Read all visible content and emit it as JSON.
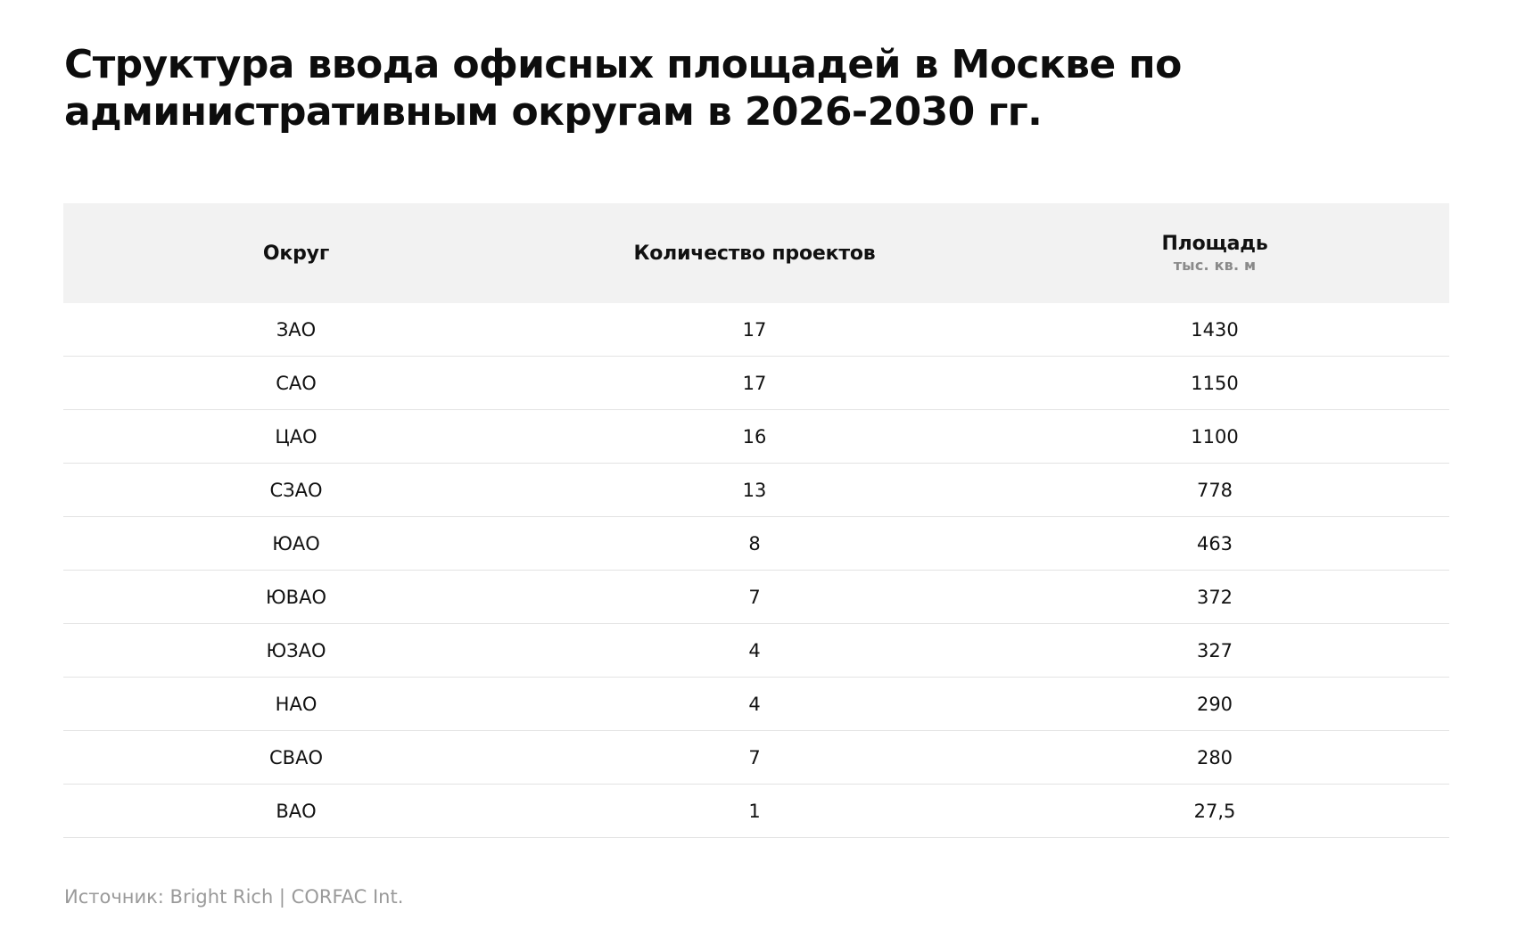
{
  "title": "Структура ввода офисных площадей в Москве по административным округам в 2026-2030 гг.",
  "source": "Источник: Bright Rich | CORFAC Int.",
  "colors": {
    "header_bg": "#f2f2f2",
    "divider": "#e3e3e3",
    "source_text": "#9a9a9a"
  },
  "chart_data": {
    "type": "table",
    "title": "Структура ввода офисных площадей в Москве по административным округам в 2026-2030 гг.",
    "columns": [
      {
        "label": "Округ",
        "unit": ""
      },
      {
        "label": "Количество проектов",
        "unit": ""
      },
      {
        "label": "Площадь",
        "unit": "тыс. кв. м"
      }
    ],
    "rows": [
      [
        "ЗАО",
        "17",
        "1430"
      ],
      [
        "САО",
        "17",
        "1150"
      ],
      [
        "ЦАО",
        "16",
        "1100"
      ],
      [
        "СЗАО",
        "13",
        "778"
      ],
      [
        "ЮАО",
        "8",
        "463"
      ],
      [
        "ЮВАО",
        "7",
        "372"
      ],
      [
        "ЮЗАО",
        "4",
        "327"
      ],
      [
        "НАО",
        "4",
        "290"
      ],
      [
        "СВАО",
        "7",
        "280"
      ],
      [
        "ВАО",
        "1",
        "27,5"
      ]
    ]
  }
}
